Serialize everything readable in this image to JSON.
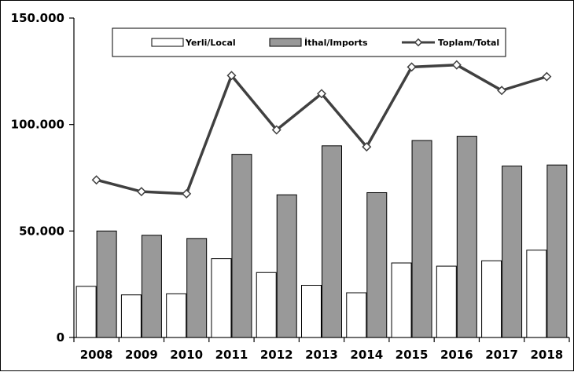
{
  "chart_data": {
    "type": "bar",
    "categories": [
      "2008",
      "2009",
      "2010",
      "2011",
      "2012",
      "2013",
      "2014",
      "2015",
      "2016",
      "2017",
      "2018"
    ],
    "series": [
      {
        "name": "Yerli/Local",
        "kind": "bar",
        "color": "#ffffff",
        "values": [
          24000,
          20000,
          20500,
          37000,
          30500,
          24500,
          21000,
          35000,
          33500,
          36000,
          41000
        ]
      },
      {
        "name": "İthal/Imports",
        "kind": "bar",
        "color": "#999999",
        "values": [
          50000,
          48000,
          46500,
          86000,
          67000,
          90000,
          68000,
          92500,
          94500,
          80500,
          81000
        ]
      },
      {
        "name": "Toplam/Total",
        "kind": "line",
        "color": "#404040",
        "values": [
          74000,
          68500,
          67500,
          123000,
          97500,
          114500,
          89500,
          127000,
          128000,
          116000,
          122500
        ]
      }
    ],
    "ylim": [
      0,
      150000
    ],
    "yticks": [
      0,
      50000,
      100000,
      150000
    ],
    "ytick_labels": [
      "0",
      "50.000",
      "100.000",
      "150.000"
    ],
    "legend": "top-center",
    "grid": false
  }
}
